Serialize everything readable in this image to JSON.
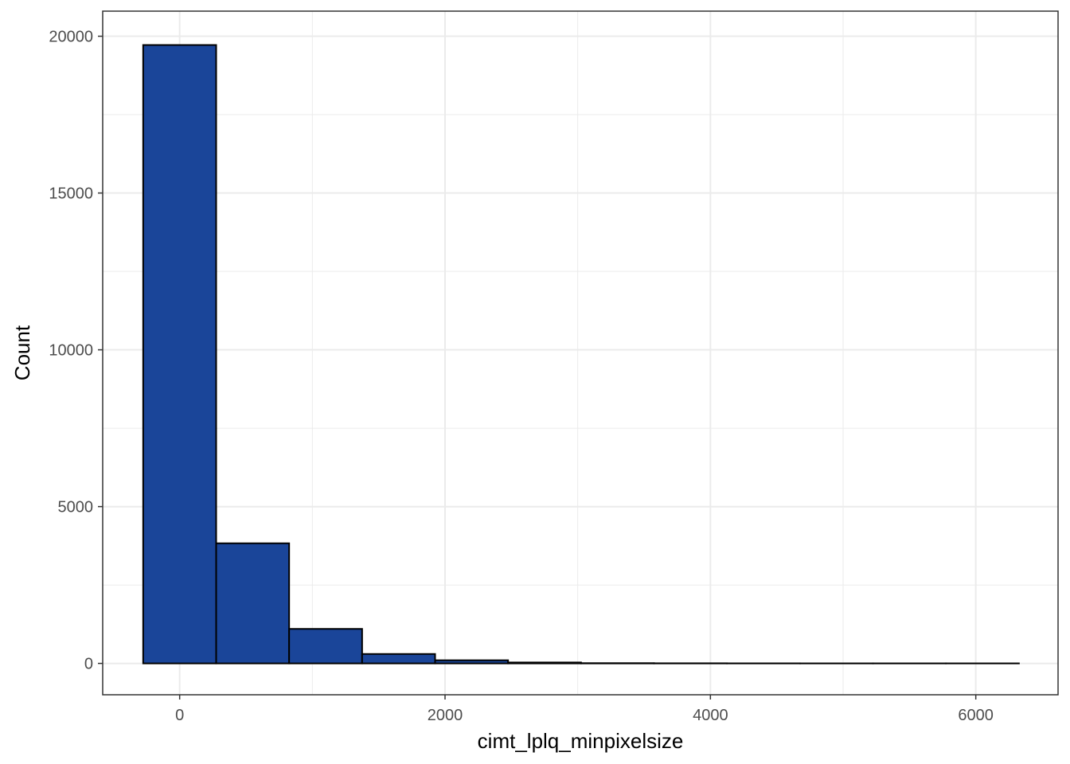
{
  "chart_data": {
    "type": "bar",
    "subtype": "histogram",
    "title": "",
    "xlabel": "cimt_lplq_minpixelsize",
    "ylabel": "Count",
    "xlim": [
      -580,
      6620
    ],
    "ylim": [
      -1000,
      20800
    ],
    "x_ticks": [
      {
        "value": 0,
        "label": "0"
      },
      {
        "value": 2000,
        "label": "2000"
      },
      {
        "value": 4000,
        "label": "4000"
      },
      {
        "value": 6000,
        "label": "6000"
      }
    ],
    "x_minor_ticks": [
      1000,
      3000,
      5000
    ],
    "y_ticks": [
      {
        "value": 0,
        "label": "0"
      },
      {
        "value": 5000,
        "label": "5000"
      },
      {
        "value": 10000,
        "label": "10000"
      },
      {
        "value": 15000,
        "label": "15000"
      },
      {
        "value": 20000,
        "label": "20000"
      }
    ],
    "y_minor_ticks": [
      2500,
      7500,
      12500,
      17500
    ],
    "bins": [
      {
        "x_start": -275,
        "x_end": 275,
        "count": 19720
      },
      {
        "x_start": 275,
        "x_end": 825,
        "count": 3830
      },
      {
        "x_start": 825,
        "x_end": 1375,
        "count": 1100
      },
      {
        "x_start": 1375,
        "x_end": 1925,
        "count": 300
      },
      {
        "x_start": 1925,
        "x_end": 2475,
        "count": 100
      },
      {
        "x_start": 2475,
        "x_end": 3025,
        "count": 30
      },
      {
        "x_start": 3025,
        "x_end": 3575,
        "count": 8
      },
      {
        "x_start": 3575,
        "x_end": 4125,
        "count": 4
      },
      {
        "x_start": 4125,
        "x_end": 4675,
        "count": 2
      },
      {
        "x_start": 4675,
        "x_end": 5225,
        "count": 1
      },
      {
        "x_start": 5225,
        "x_end": 5775,
        "count": 1
      },
      {
        "x_start": 5775,
        "x_end": 6325,
        "count": 1
      }
    ],
    "grid": true,
    "bar_fill": "#1a4599",
    "bar_outline": "#000000",
    "panel_background": "#ffffff",
    "grid_color": "#ebebeb",
    "panel_border_color": "#333333"
  }
}
